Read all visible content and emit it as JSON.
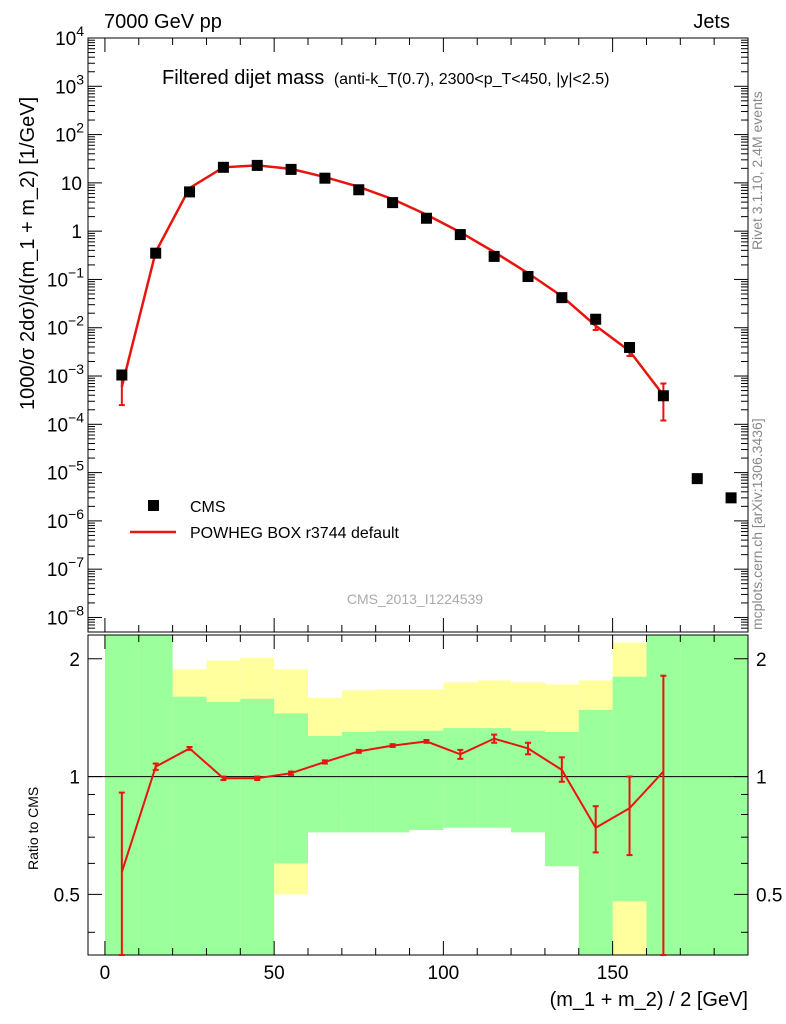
{
  "header": {
    "energy": "7000 GeV pp",
    "process": "Jets"
  },
  "side": {
    "rivet": "Rivet 3.1.10,  2.4M events",
    "mcplots": "mcplots.cern.ch [arXiv:1306.3436]"
  },
  "chart_data": [
    {
      "type": "scatter",
      "title_main": "Filtered dijet mass",
      "title_sub": "(anti-k_T(0.7), 2300<p_T<450, |y|<2.5)",
      "ylabel": "1000/σ 2dσ)/d(m_1 + m_2) [1/GeV]",
      "yscale": "log",
      "ylim": [
        5e-09,
        10000.0
      ],
      "xlim": [
        -5,
        190
      ],
      "yticks": [
        {
          "v": 10000.0,
          "label": "10",
          "exp": "4"
        },
        {
          "v": 1000.0,
          "label": "10",
          "exp": "3"
        },
        {
          "v": 100.0,
          "label": "10",
          "exp": "2"
        },
        {
          "v": 10,
          "label": "10",
          "exp": ""
        },
        {
          "v": 1,
          "label": "1",
          "exp": ""
        },
        {
          "v": 0.1,
          "label": "10",
          "exp": "−1"
        },
        {
          "v": 0.01,
          "label": "10",
          "exp": "−2"
        },
        {
          "v": 0.001,
          "label": "10",
          "exp": "−3"
        },
        {
          "v": 0.0001,
          "label": "10",
          "exp": "−4"
        },
        {
          "v": 1e-05,
          "label": "10",
          "exp": "−5"
        },
        {
          "v": 1e-06,
          "label": "10",
          "exp": "−6"
        },
        {
          "v": 1e-07,
          "label": "10",
          "exp": "−7"
        },
        {
          "v": 1e-08,
          "label": "10",
          "exp": "−8"
        }
      ],
      "series": [
        {
          "name": "CMS",
          "x": [
            5,
            15,
            25,
            35,
            45,
            55,
            65,
            75,
            85,
            95,
            105,
            115,
            125,
            135,
            145,
            155,
            165,
            175,
            185
          ],
          "y": [
            0.00105,
            0.35,
            6.5,
            21,
            23,
            19,
            12.5,
            7.2,
            3.9,
            1.85,
            0.85,
            0.3,
            0.115,
            0.042,
            0.015,
            0.0039,
            0.00039,
            7.5e-06,
            3e-06
          ]
        },
        {
          "name": "POWHEG BOX r3744 default",
          "color": "#e8140e",
          "x": [
            5,
            15,
            25,
            35,
            45,
            55,
            65,
            75,
            85,
            95,
            105,
            115,
            125,
            135,
            145,
            155,
            165
          ],
          "y": [
            0.0006,
            0.37,
            7.8,
            21,
            23,
            19.5,
            13.2,
            8.3,
            4.6,
            2.2,
            0.95,
            0.37,
            0.135,
            0.045,
            0.011,
            0.0033,
            0.0004
          ],
          "err_lo": [
            0.00025,
            null,
            null,
            null,
            null,
            null,
            null,
            null,
            null,
            null,
            null,
            null,
            null,
            null,
            0.009,
            0.0026,
            0.00012
          ],
          "err_hi": [
            0.0013,
            null,
            null,
            null,
            null,
            null,
            null,
            null,
            null,
            null,
            null,
            null,
            null,
            null,
            0.013,
            0.004,
            0.0007
          ]
        }
      ],
      "watermark": "CMS_2013_I1224539"
    },
    {
      "type": "line",
      "ylabel": "Ratio to CMS",
      "xlabel": "(m_1 + m_2) / 2 [GeV]",
      "ylim": [
        0.35,
        2.3
      ],
      "xlim": [
        -5,
        190
      ],
      "xticks": [
        0,
        50,
        100,
        150
      ],
      "yticks": [
        0.5,
        1,
        2
      ],
      "bins": [
        0,
        10,
        20,
        30,
        40,
        50,
        60,
        70,
        80,
        90,
        100,
        110,
        120,
        130,
        140,
        150,
        160,
        170,
        190
      ],
      "band_yellow": [
        {
          "lo": 0.2,
          "hi": 3.0
        },
        {
          "lo": 0.2,
          "hi": 3.0
        },
        {
          "lo": 0.69,
          "hi": 1.88
        },
        {
          "lo": 0.2,
          "hi": 1.98
        },
        {
          "lo": 0.2,
          "hi": 2.01
        },
        {
          "lo": 0.5,
          "hi": 1.88
        },
        {
          "lo": 0.8,
          "hi": 1.59
        },
        {
          "lo": 0.82,
          "hi": 1.66
        },
        {
          "lo": 0.81,
          "hi": 1.67
        },
        {
          "lo": 0.82,
          "hi": 1.67
        },
        {
          "lo": 0.84,
          "hi": 1.74
        },
        {
          "lo": 0.84,
          "hi": 1.76
        },
        {
          "lo": 0.83,
          "hi": 1.74
        },
        {
          "lo": 0.69,
          "hi": 1.72
        },
        {
          "lo": 0.25,
          "hi": 1.76
        },
        {
          "lo": 0.2,
          "hi": 2.2
        },
        {
          "lo": 0.2,
          "hi": 3.0
        },
        {
          "lo": 0.2,
          "hi": 3.0
        }
      ],
      "band_green": [
        {
          "lo": 0.2,
          "hi": 3.0
        },
        {
          "lo": 0.2,
          "hi": 3.0
        },
        {
          "lo": 0.2,
          "hi": 1.6
        },
        {
          "lo": 0.2,
          "hi": 1.55
        },
        {
          "lo": 0.2,
          "hi": 1.58
        },
        {
          "lo": 0.6,
          "hi": 1.45
        },
        {
          "lo": 0.72,
          "hi": 1.27
        },
        {
          "lo": 0.72,
          "hi": 1.3
        },
        {
          "lo": 0.72,
          "hi": 1.31
        },
        {
          "lo": 0.73,
          "hi": 1.31
        },
        {
          "lo": 0.74,
          "hi": 1.33
        },
        {
          "lo": 0.74,
          "hi": 1.33
        },
        {
          "lo": 0.72,
          "hi": 1.31
        },
        {
          "lo": 0.59,
          "hi": 1.3
        },
        {
          "lo": 0.25,
          "hi": 1.48
        },
        {
          "lo": 0.48,
          "hi": 1.8
        },
        {
          "lo": 0.2,
          "hi": 3.0
        },
        {
          "lo": 0.2,
          "hi": 3.0
        }
      ],
      "series": [
        {
          "name": "POWHEG BOX r3744 default",
          "color": "#e8140e",
          "x": [
            5,
            15,
            25,
            35,
            45,
            55,
            65,
            75,
            85,
            95,
            105,
            115,
            125,
            135,
            145,
            155,
            165
          ],
          "y": [
            0.57,
            1.06,
            1.18,
            0.99,
            0.99,
            1.02,
            1.09,
            1.16,
            1.2,
            1.23,
            1.14,
            1.25,
            1.18,
            1.04,
            0.74,
            0.83,
            1.03
          ],
          "err_lo": [
            0.2,
            1.04,
            1.17,
            0.98,
            0.98,
            1.01,
            1.08,
            1.15,
            1.19,
            1.22,
            1.11,
            1.22,
            1.14,
            0.97,
            0.64,
            0.63,
            0.2
          ],
          "err_hi": [
            0.91,
            1.08,
            1.19,
            1.0,
            1.0,
            1.03,
            1.1,
            1.17,
            1.21,
            1.24,
            1.17,
            1.28,
            1.22,
            1.12,
            0.84,
            1.0,
            1.81
          ]
        }
      ]
    }
  ],
  "legend": {
    "data_label": "CMS",
    "mc_label": "POWHEG BOX r3744 default"
  }
}
